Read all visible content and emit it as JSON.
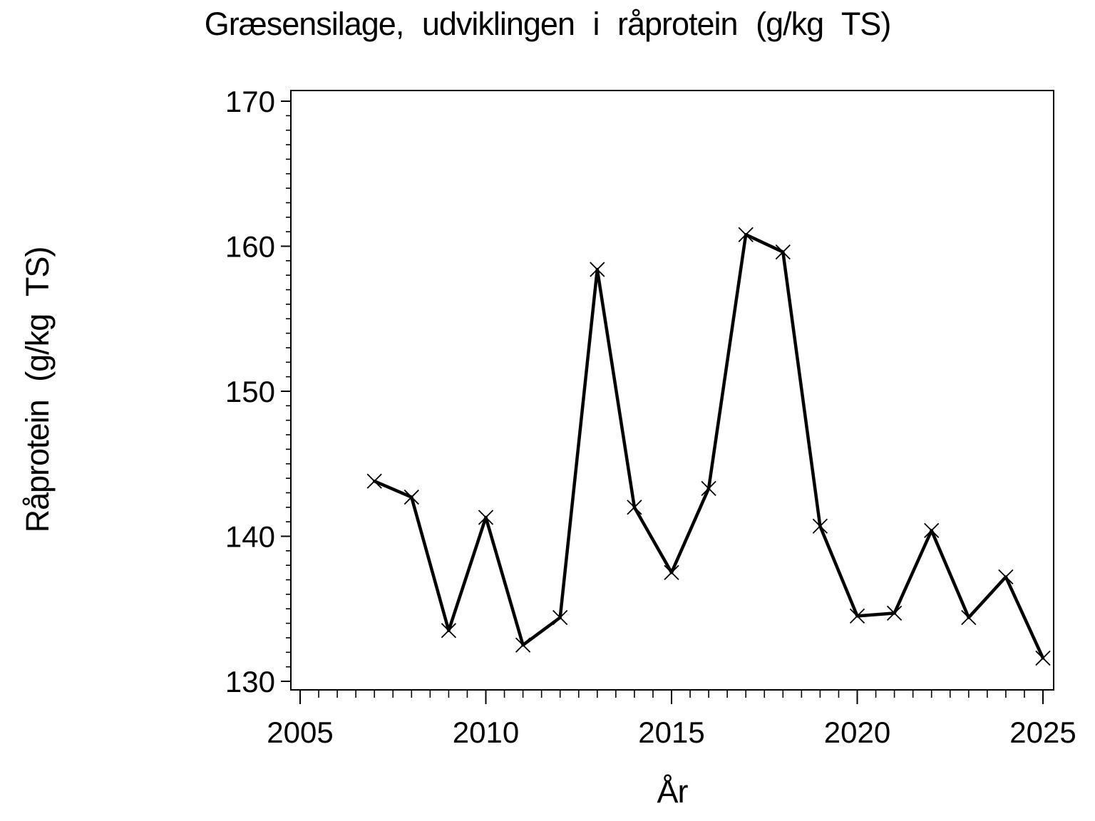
{
  "chart_data": {
    "type": "line",
    "title": "Græsensilage, udviklingen i råprotein (g/kg TS)",
    "xlabel": "År",
    "ylabel": "Råprotein (g/kg TS)",
    "x": [
      2007,
      2008,
      2009,
      2010,
      2011,
      2012,
      2013,
      2014,
      2015,
      2016,
      2017,
      2018,
      2019,
      2020,
      2021,
      2022,
      2023,
      2024,
      2025
    ],
    "values": [
      143.8,
      142.7,
      133.5,
      141.3,
      132.5,
      134.4,
      158.4,
      142.0,
      137.5,
      143.3,
      160.8,
      159.6,
      140.7,
      134.5,
      134.7,
      140.4,
      134.4,
      137.2,
      131.6
    ],
    "series_name": "Råprotein (g/kg TS)",
    "xlim": [
      2005,
      2025
    ],
    "ylim": [
      130,
      170
    ],
    "xticks": [
      2005,
      2010,
      2015,
      2020,
      2025
    ],
    "yticks": [
      130,
      140,
      150,
      160,
      170
    ],
    "x_minor_step": 0.5,
    "y_minor_step": 1,
    "marker": "x-cross",
    "line_color": "#000000",
    "marker_color": "#000000",
    "axis_color": "#000000",
    "text_color": "#000000",
    "background_color": "#ffffff",
    "grid": false,
    "legend_position": "none"
  }
}
